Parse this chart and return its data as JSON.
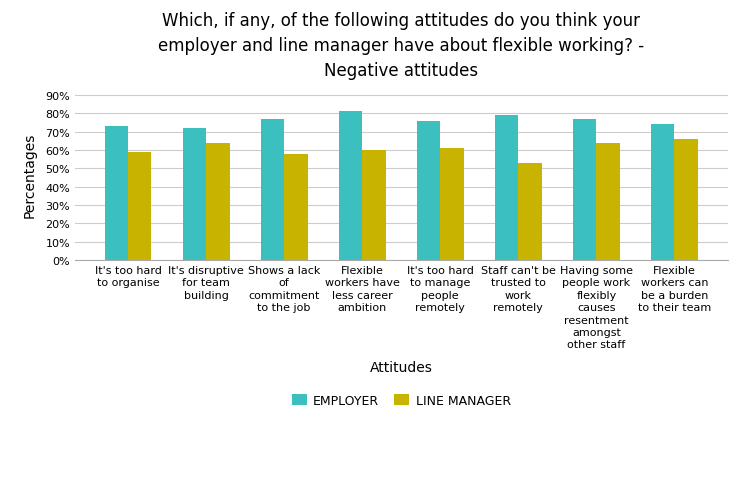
{
  "title": "Which, if any, of the following attitudes do you think your\nemployer and line manager have about flexible working? -\nNegative attitudes",
  "categories": [
    "It's too hard\nto organise",
    "It's disruptive\nfor team\nbuilding",
    "Shows a lack\nof\ncommitment\nto the job",
    "Flexible\nworkers have\nless career\nambition",
    "It's too hard\nto manage\npeople\nremotely",
    "Staff can't be\ntrusted to\nwork\nremotely",
    "Having some\npeople work\nflexibly\ncauses\nresentment\namongst\nother staff",
    "Flexible\nworkers can\nbe a burden\nto their team"
  ],
  "employer_values": [
    73,
    72,
    77,
    81,
    76,
    79,
    77,
    74
  ],
  "line_manager_values": [
    59,
    64,
    58,
    60,
    61,
    53,
    64,
    66
  ],
  "employer_color": "#3BBFBF",
  "line_manager_color": "#C8B400",
  "xlabel": "Attitudes",
  "ylabel": "Percentages",
  "yticks": [
    0,
    10,
    20,
    30,
    40,
    50,
    60,
    70,
    80,
    90
  ],
  "ylim": [
    0,
    93
  ],
  "legend_labels": [
    "EMPLOYER",
    "LINE MANAGER"
  ],
  "background_color": "#ffffff",
  "title_fontsize": 12,
  "axis_label_fontsize": 10,
  "tick_fontsize": 8,
  "legend_fontsize": 9,
  "bar_width": 0.3
}
